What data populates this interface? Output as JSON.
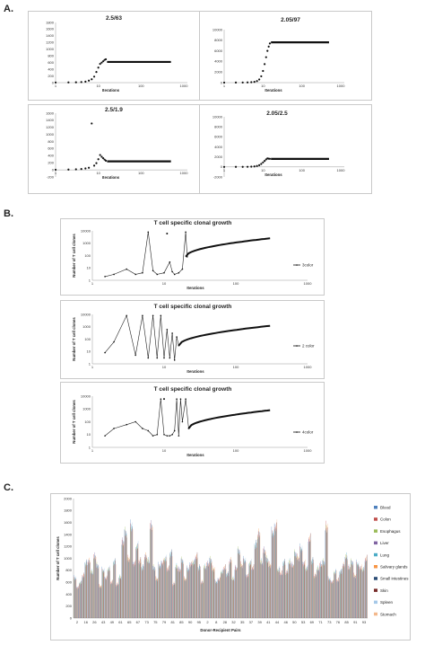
{
  "panel_labels": {
    "a": "A.",
    "b": "B.",
    "c": "C."
  },
  "chart_data": [
    {
      "type": "scatter",
      "panel": "A1",
      "title": "2.5/63",
      "xlabel": "Iterations",
      "x_scale": "log",
      "x_ticks": [
        "1",
        "10",
        "100",
        "1000"
      ],
      "y_ticks": [
        "0",
        "200",
        "400",
        "600",
        "800",
        "1000",
        "1200",
        "1400",
        "1600",
        "1800"
      ],
      "ylim": [
        0,
        1800
      ],
      "plateau_from": 16,
      "plateau_to": 500,
      "plateau_value": 620,
      "points": [
        [
          1,
          5
        ],
        [
          2,
          8
        ],
        [
          3,
          10
        ],
        [
          4,
          18
        ],
        [
          5,
          30
        ],
        [
          6,
          60
        ],
        [
          7,
          100
        ],
        [
          8,
          180
        ],
        [
          9,
          320
        ],
        [
          10,
          450
        ],
        [
          11,
          560
        ],
        [
          12,
          600
        ],
        [
          13,
          640
        ],
        [
          14,
          680
        ],
        [
          15,
          700
        ]
      ]
    },
    {
      "type": "scatter",
      "panel": "A2",
      "title": "2.05/97",
      "xlabel": "Iterations",
      "x_scale": "log",
      "x_ticks": [
        "1",
        "10",
        "100",
        "1000"
      ],
      "y_ticks": [
        "0",
        "2000",
        "4000",
        "6000",
        "8000",
        "10000"
      ],
      "ylim": [
        0,
        10000
      ],
      "plateau_from": 16,
      "plateau_to": 500,
      "plateau_value": 7600,
      "points": [
        [
          1,
          10
        ],
        [
          2,
          20
        ],
        [
          3,
          30
        ],
        [
          4,
          50
        ],
        [
          5,
          80
        ],
        [
          6,
          150
        ],
        [
          7,
          300
        ],
        [
          8,
          600
        ],
        [
          9,
          1200
        ],
        [
          10,
          2200
        ],
        [
          11,
          3500
        ],
        [
          12,
          4800
        ],
        [
          13,
          6000
        ],
        [
          14,
          6800
        ],
        [
          15,
          7400
        ]
      ]
    },
    {
      "type": "scatter",
      "panel": "A3",
      "title": "2.5/1.9",
      "xlabel": "Iterations",
      "x_scale": "log",
      "x_ticks": [
        "1",
        "10",
        "100",
        "1000"
      ],
      "y_ticks": [
        "-200",
        "0",
        "200",
        "400",
        "600",
        "800",
        "1000",
        "1200",
        "1400",
        "1600"
      ],
      "ylim": [
        -200,
        1600
      ],
      "plateau_from": 16,
      "plateau_to": 500,
      "plateau_value": 240,
      "points": [
        [
          1,
          5
        ],
        [
          2,
          10
        ],
        [
          3,
          15
        ],
        [
          4,
          25
        ],
        [
          5,
          40
        ],
        [
          6,
          60
        ],
        [
          7,
          1310
        ],
        [
          8,
          120
        ],
        [
          9,
          190
        ],
        [
          10,
          300
        ],
        [
          11,
          420
        ],
        [
          12,
          370
        ],
        [
          13,
          330
        ],
        [
          14,
          290
        ],
        [
          15,
          260
        ]
      ]
    },
    {
      "type": "scatter",
      "panel": "A4",
      "title": "2.05/2.5",
      "xlabel": "Iterations",
      "x_scale": "log",
      "x_ticks": [
        "1",
        "10",
        "100",
        "1000"
      ],
      "y_ticks": [
        "-2000",
        "0",
        "2000",
        "4000",
        "6000",
        "8000",
        "10000"
      ],
      "ylim": [
        -2000,
        10000
      ],
      "plateau_from": 16,
      "plateau_to": 500,
      "plateau_value": 1600,
      "points": [
        [
          1,
          5
        ],
        [
          2,
          10
        ],
        [
          3,
          20
        ],
        [
          4,
          30
        ],
        [
          5,
          60
        ],
        [
          6,
          100
        ],
        [
          7,
          200
        ],
        [
          8,
          350
        ],
        [
          9,
          600
        ],
        [
          10,
          900
        ],
        [
          11,
          1200
        ],
        [
          12,
          1500
        ],
        [
          13,
          1700
        ],
        [
          14,
          1650
        ],
        [
          15,
          1620
        ]
      ]
    },
    {
      "type": "line",
      "panel": "B1",
      "title": "T cell specific clonal growth",
      "xlabel": "Iterations",
      "ylabel": "Number of T cell clones",
      "x_scale": "log",
      "x_ticks": [
        "1",
        "10",
        "100",
        "1000"
      ],
      "y_scale": "log",
      "y_ticks": [
        "1",
        "10",
        "100",
        "1000",
        "10000"
      ],
      "legend": "3color",
      "trend_from": 20,
      "trend_to": 300,
      "trend_start": 80,
      "trend_end": 2500,
      "points": [
        [
          1.5,
          2
        ],
        [
          2,
          3
        ],
        [
          3,
          8
        ],
        [
          4,
          3
        ],
        [
          5,
          4
        ],
        [
          6,
          8000
        ],
        [
          7,
          6
        ],
        [
          8,
          3
        ],
        [
          10,
          4
        ],
        [
          12,
          30
        ],
        [
          13,
          5
        ],
        [
          14,
          3
        ],
        [
          16,
          4
        ],
        [
          18,
          8
        ],
        [
          20,
          8000
        ],
        [
          21,
          80
        ]
      ],
      "outliers": [
        [
          11,
          6000
        ]
      ]
    },
    {
      "type": "line",
      "panel": "B2",
      "title": "T cell specific clonal growth",
      "xlabel": "Iterations",
      "ylabel": "Number of T cell clones",
      "x_scale": "log",
      "x_ticks": [
        "1",
        "10",
        "100",
        "1000"
      ],
      "y_scale": "log",
      "y_ticks": [
        "1",
        "10",
        "100",
        "1000",
        "10000"
      ],
      "legend": "2 color",
      "trend_from": 16,
      "trend_to": 300,
      "trend_start": 30,
      "trend_end": 1200,
      "points": [
        [
          1.5,
          8
        ],
        [
          2,
          60
        ],
        [
          3,
          8000
        ],
        [
          4,
          5
        ],
        [
          5,
          8000
        ],
        [
          6,
          3
        ],
        [
          7,
          8000
        ],
        [
          8,
          3
        ],
        [
          9,
          8000
        ],
        [
          10,
          3
        ],
        [
          11,
          600
        ],
        [
          12,
          3
        ],
        [
          13,
          300
        ],
        [
          14,
          2
        ],
        [
          15,
          150
        ],
        [
          16,
          30
        ]
      ],
      "outliers": []
    },
    {
      "type": "line",
      "panel": "B3",
      "title": "T cell specific clonal growth",
      "xlabel": "Iterations",
      "ylabel": "Number of T cell clones",
      "x_scale": "log",
      "x_ticks": [
        "1",
        "10",
        "100",
        "1000"
      ],
      "y_scale": "log",
      "y_ticks": [
        "1",
        "10",
        "100",
        "1000",
        "10000"
      ],
      "legend": "4color",
      "trend_from": 22,
      "trend_to": 300,
      "trend_start": 30,
      "trend_end": 800,
      "points": [
        [
          1.5,
          8
        ],
        [
          2,
          30
        ],
        [
          3,
          60
        ],
        [
          4,
          100
        ],
        [
          5,
          30
        ],
        [
          6,
          20
        ],
        [
          7,
          8
        ],
        [
          8,
          10
        ],
        [
          9,
          6000
        ],
        [
          10,
          10
        ],
        [
          11,
          8
        ],
        [
          12,
          8
        ],
        [
          13,
          10
        ],
        [
          14,
          20
        ],
        [
          15,
          6000
        ],
        [
          16,
          8
        ],
        [
          17,
          6000
        ],
        [
          18,
          100
        ],
        [
          20,
          6000
        ],
        [
          22,
          30
        ]
      ],
      "outliers": [
        [
          10,
          6000
        ]
      ]
    },
    {
      "type": "bar",
      "panel": "C",
      "ylabel": "Number of T cell clones",
      "xlabel": "Donor-Recipient Pairs",
      "ylim": [
        0,
        2000
      ],
      "y_ticks": [
        "0",
        "200",
        "400",
        "600",
        "800",
        "1000",
        "1200",
        "1400",
        "1600",
        "1800",
        "2000"
      ],
      "x_tick_labels": [
        "2",
        "16",
        "26",
        "43",
        "49",
        "61",
        "65",
        "67",
        "73",
        "75",
        "79",
        "81",
        "85",
        "90",
        "95",
        "2",
        "8",
        "28",
        "32",
        "35",
        "37",
        "39",
        "41",
        "44",
        "46",
        "50",
        "53",
        "69",
        "71",
        "73",
        "76",
        "85",
        "91",
        "93"
      ],
      "series": [
        {
          "name": "Blood",
          "color": "#4f81bd"
        },
        {
          "name": "Colon",
          "color": "#c0504d"
        },
        {
          "name": "Esophagus",
          "color": "#9bbb59"
        },
        {
          "name": "Liver",
          "color": "#8064a2"
        },
        {
          "name": "Lung",
          "color": "#4bacc6"
        },
        {
          "name": "Salivary glands",
          "color": "#f79646"
        },
        {
          "name": "Small intestines",
          "color": "#2c4d75"
        },
        {
          "name": "Skin",
          "color": "#772c2a"
        },
        {
          "name": "Spleen",
          "color": "#a5c8e8"
        },
        {
          "name": "Stomach",
          "color": "#f3b88c"
        }
      ],
      "group_totals": [
        720,
        550,
        640,
        760,
        980,
        1010,
        820,
        1100,
        940,
        570,
        860,
        720,
        880,
        640,
        1000,
        600,
        730,
        1350,
        1530,
        1060,
        1650,
        980,
        1290,
        1020,
        900,
        1100,
        1020,
        1640,
        900,
        700,
        940,
        1000,
        1060,
        880,
        1150,
        610,
        920,
        860,
        1030,
        700,
        880,
        970,
        1000,
        1100,
        900,
        640,
        910,
        960,
        1040,
        880,
        650,
        700,
        830,
        900,
        780,
        1020,
        700,
        890,
        1200,
        950,
        1040,
        760,
        990,
        900,
        1310,
        1500,
        1000,
        1200,
        1050,
        950,
        1530,
        1650,
        870,
        800,
        990,
        820,
        1000,
        940,
        1150,
        1080,
        1250,
        980,
        890,
        1420,
        1020,
        760,
        880,
        950,
        1000,
        1630,
        700,
        650,
        830,
        680,
        820,
        940,
        1100,
        900,
        1000,
        760,
        980,
        900,
        880,
        1060
      ]
    }
  ]
}
